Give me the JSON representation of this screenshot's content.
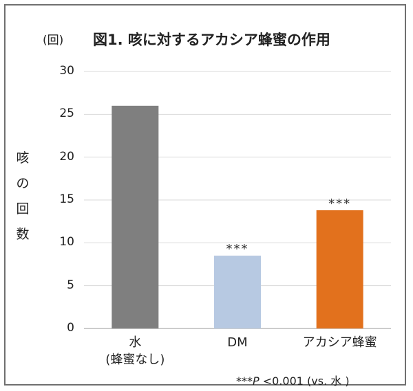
{
  "chart_data": {
    "type": "bar",
    "title": "図1. 咳に対するアカシア蜂蜜の作用",
    "unit_label": "(回)",
    "ylabel_chars": [
      "咳",
      "の",
      "回",
      "数"
    ],
    "categories": [
      {
        "line1": "水",
        "line2": "(蜂蜜なし)"
      },
      {
        "line1": "DM",
        "line2": ""
      },
      {
        "line1": "アカシア蜂蜜",
        "line2": ""
      }
    ],
    "values": [
      26,
      8.5,
      13.8
    ],
    "bar_colors": [
      "#7f7f7f",
      "#b7c9e2",
      "#e2711d"
    ],
    "data_labels": [
      "",
      "***",
      "***"
    ],
    "yticks": [
      "0",
      "5",
      "10",
      "15",
      "20",
      "25",
      "30"
    ],
    "ylim": [
      0,
      30
    ],
    "grid": true,
    "footnote": {
      "stars": "***",
      "p": "P",
      "rest": " <0.001  (vs. 水 )"
    }
  }
}
